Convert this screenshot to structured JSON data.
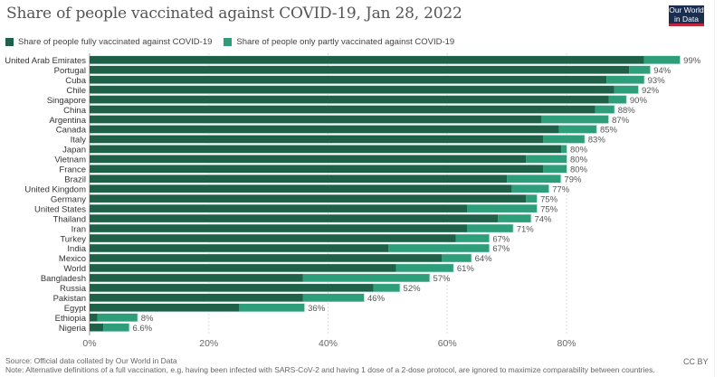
{
  "header": {
    "title": "Share of people vaccinated against COVID-19, Jan 28, 2022",
    "logo_line1": "Our World",
    "logo_line2": "in Data"
  },
  "legend": [
    {
      "label": "Share of people fully vaccinated against COVID-19",
      "color": "#1f6048"
    },
    {
      "label": "Share of people only partly vaccinated against COVID-19",
      "color": "#2e9d7a"
    }
  ],
  "footer": {
    "source": "Source: Official data collated by Our World in Data",
    "note": "Note: Alternative definitions of a full vaccination, e.g. having been infected with SARS-CoV-2 and having 1 dose of a 2-dose protocol, are ignored to maximize comparability between countries.",
    "license": "CC BY"
  },
  "chart_data": {
    "type": "bar",
    "orientation": "horizontal",
    "stacked": true,
    "title": "Share of people vaccinated against COVID-19, Jan 28, 2022",
    "xlabel": "",
    "ylabel": "",
    "xlim": [
      0,
      99
    ],
    "x_ticks": [
      "0%",
      "20%",
      "40%",
      "60%",
      "80%"
    ],
    "x_tick_values": [
      0,
      20,
      40,
      60,
      80
    ],
    "grid": "vertical dotted",
    "legend_position": "top-left",
    "categories": [
      "United Arab Emirates",
      "Portugal",
      "Cuba",
      "Chile",
      "Singapore",
      "China",
      "Argentina",
      "Canada",
      "Italy",
      "Japan",
      "Vietnam",
      "France",
      "Brazil",
      "United Kingdom",
      "Germany",
      "United States",
      "Thailand",
      "Iran",
      "Turkey",
      "India",
      "Mexico",
      "World",
      "Bangladesh",
      "Russia",
      "Pakistan",
      "Egypt",
      "Ethiopia",
      "Nigeria"
    ],
    "series": [
      {
        "name": "Share of people fully vaccinated against COVID-19",
        "color": "#1f6048",
        "values": [
          93,
          90.5,
          86.7,
          88,
          87.1,
          84.8,
          75.8,
          78.7,
          76.1,
          79.1,
          73.2,
          76.1,
          70,
          70.8,
          73.2,
          63.3,
          68.5,
          63.3,
          61.4,
          50.1,
          59.1,
          51.4,
          35.8,
          47.6,
          35.8,
          25.1,
          1.3,
          2.3
        ]
      },
      {
        "name": "Share of people only partly vaccinated against COVID-19",
        "color": "#2e9d7a",
        "values": [
          6,
          3.5,
          6.3,
          4,
          2.9,
          3.2,
          11.2,
          6.3,
          6.9,
          0.9,
          6.8,
          3.9,
          9,
          6.2,
          1.8,
          11.7,
          5.5,
          7.7,
          5.6,
          16.9,
          4.9,
          9.6,
          21.2,
          4.4,
          10.2,
          10.9,
          6.7,
          4.3
        ]
      }
    ],
    "totals_labels": [
      "99%",
      "94%",
      "93%",
      "92%",
      "90%",
      "88%",
      "87%",
      "85%",
      "83%",
      "80%",
      "80%",
      "80%",
      "79%",
      "77%",
      "75%",
      "75%",
      "74%",
      "71%",
      "67%",
      "67%",
      "64%",
      "61%",
      "57%",
      "52%",
      "46%",
      "36%",
      "8%",
      "6.6%"
    ]
  }
}
